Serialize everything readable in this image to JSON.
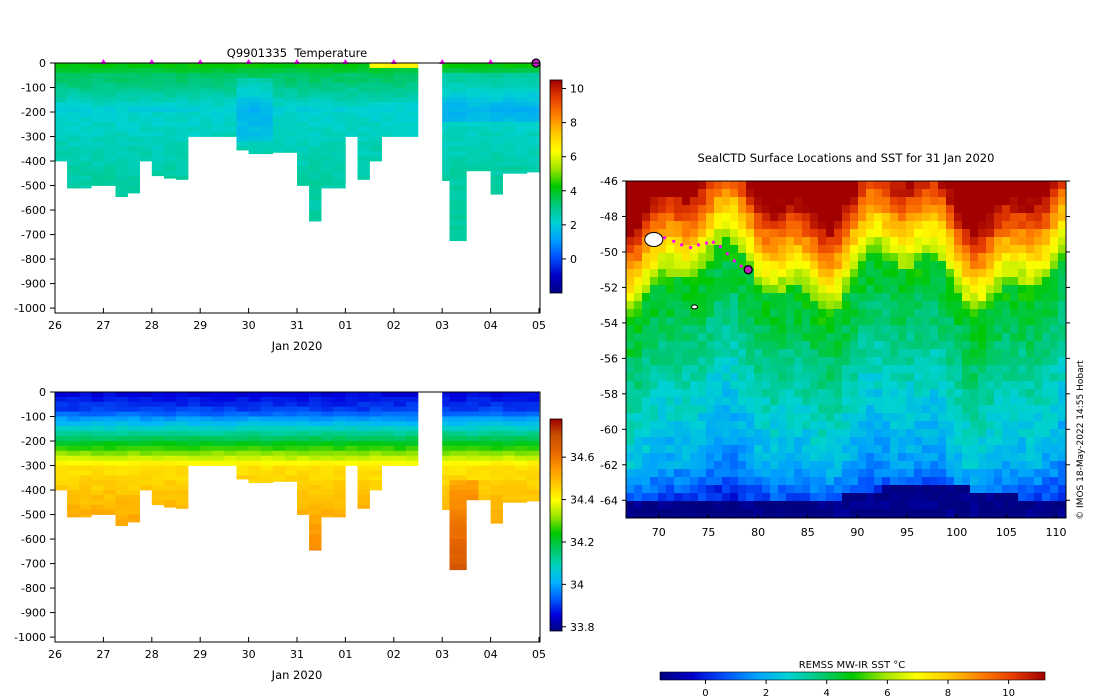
{
  "figure": {
    "copyright": "© IMOS 18-May-2022 14:55 Hobart"
  },
  "colors": {
    "temperature_scale": [
      "#000080",
      "#0000c8",
      "#0050ff",
      "#00a0ff",
      "#00d2d2",
      "#00c878",
      "#00c800",
      "#a0e600",
      "#ffff00",
      "#ffc800",
      "#ff8000",
      "#e63c00",
      "#a00000"
    ],
    "salinity_scale": [
      "#000080",
      "#0000dc",
      "#0060ff",
      "#00b4ff",
      "#00d2be",
      "#00c864",
      "#00c800",
      "#96e600",
      "#ffff00",
      "#ffc800",
      "#ff9600",
      "#e66400",
      "#c85000",
      "#a00000"
    ],
    "track_dot": "#ff00ff",
    "marker_fill": "#c020c0"
  },
  "chart_data": [
    {
      "type": "heatmap",
      "title": "Q9901335  Temperature",
      "xlabel": "Jan 2020",
      "ylabel": "",
      "xticks": [
        "26",
        "27",
        "28",
        "29",
        "30",
        "31",
        "01",
        "02",
        "03",
        "04",
        "05"
      ],
      "yticks": [
        "0",
        "-100",
        "-200",
        "-300",
        "-400",
        "-500",
        "-600",
        "-700",
        "-800",
        "-900",
        "-1000"
      ],
      "ylim": [
        -1020,
        0
      ],
      "colorbar": {
        "min": -2,
        "max": 10.5,
        "ticks": [
          "0",
          "2",
          "4",
          "6",
          "8",
          "10"
        ],
        "tick_values": [
          0,
          2,
          4,
          6,
          8,
          10
        ]
      },
      "surface_markers_day": [
        27,
        28,
        29,
        30,
        31,
        32,
        33,
        34,
        35
      ],
      "profiles": [
        {
          "day": 26.0,
          "w": 0.25,
          "depth": 400
        },
        {
          "day": 26.25,
          "w": 0.25,
          "depth": 510
        },
        {
          "day": 26.5,
          "w": 0.25,
          "depth": 510
        },
        {
          "day": 26.75,
          "w": 0.25,
          "depth": 500
        },
        {
          "day": 27.0,
          "w": 0.25,
          "depth": 500
        },
        {
          "day": 27.25,
          "w": 0.25,
          "depth": 545
        },
        {
          "day": 27.5,
          "w": 0.25,
          "depth": 530
        },
        {
          "day": 27.75,
          "w": 0.25,
          "depth": 400
        },
        {
          "day": 28.0,
          "w": 0.25,
          "depth": 460
        },
        {
          "day": 28.25,
          "w": 0.25,
          "depth": 470
        },
        {
          "day": 28.5,
          "w": 0.25,
          "depth": 475
        },
        {
          "day": 28.75,
          "w": 0.25,
          "depth": 300
        },
        {
          "day": 29.0,
          "w": 0.25,
          "depth": 300
        },
        {
          "day": 29.25,
          "w": 0.25,
          "depth": 300
        },
        {
          "day": 29.5,
          "w": 0.25,
          "depth": 300
        },
        {
          "day": 29.75,
          "w": 0.25,
          "depth": 355
        },
        {
          "day": 30.0,
          "w": 0.25,
          "depth": 370
        },
        {
          "day": 30.25,
          "w": 0.25,
          "depth": 370
        },
        {
          "day": 30.5,
          "w": 0.25,
          "depth": 365
        },
        {
          "day": 30.75,
          "w": 0.25,
          "depth": 365
        },
        {
          "day": 31.0,
          "w": 0.25,
          "depth": 500
        },
        {
          "day": 31.25,
          "w": 0.25,
          "depth": 645
        },
        {
          "day": 31.5,
          "w": 0.25,
          "depth": 510
        },
        {
          "day": 31.75,
          "w": 0.25,
          "depth": 510
        },
        {
          "day": 32.0,
          "w": 0.25,
          "depth": 300
        },
        {
          "day": 32.25,
          "w": 0.25,
          "depth": 475
        },
        {
          "day": 32.5,
          "w": 0.25,
          "depth": 400
        },
        {
          "day": 32.75,
          "w": 0.25,
          "depth": 300
        },
        {
          "day": 33.0,
          "w": 0.25,
          "depth": 300
        },
        {
          "day": 33.25,
          "w": 0.25,
          "depth": 300
        },
        {
          "day": 34.0,
          "w": 0.15,
          "depth": 480
        },
        {
          "day": 34.15,
          "w": 0.35,
          "depth": 725
        },
        {
          "day": 34.5,
          "w": 0.25,
          "depth": 440
        },
        {
          "day": 34.75,
          "w": 0.25,
          "depth": 440
        },
        {
          "day": 35.0,
          "w": 0.25,
          "depth": 535
        },
        {
          "day": 35.25,
          "w": 0.25,
          "depth": 450
        },
        {
          "day": 35.5,
          "w": 0.25,
          "depth": 450
        },
        {
          "day": 35.75,
          "w": 0.25,
          "depth": 445
        }
      ]
    },
    {
      "type": "heatmap",
      "title": "",
      "xlabel": "Jan 2020",
      "ylabel": "",
      "xticks": [
        "26",
        "27",
        "28",
        "29",
        "30",
        "31",
        "01",
        "02",
        "03",
        "04",
        "05"
      ],
      "yticks": [
        "0",
        "-100",
        "-200",
        "-300",
        "-400",
        "-500",
        "-600",
        "-700",
        "-800",
        "-900",
        "-1000"
      ],
      "ylim": [
        -1020,
        0
      ],
      "colorbar": {
        "min": 33.78,
        "max": 34.78,
        "ticks": [
          "33.8",
          "34",
          "34.2",
          "34.4",
          "34.6"
        ],
        "tick_values": [
          33.8,
          34.0,
          34.2,
          34.4,
          34.6
        ]
      }
    },
    {
      "type": "heatmap",
      "title": "SealCTD Surface Locations and SST for 31 Jan 2020",
      "xlabel": "",
      "ylabel": "",
      "xlim": [
        66.7,
        111
      ],
      "ylim": [
        -65,
        -46
      ],
      "xticks": [
        "70",
        "75",
        "80",
        "85",
        "90",
        "95",
        "100",
        "105",
        "110"
      ],
      "xtick_values": [
        70,
        75,
        80,
        85,
        90,
        95,
        100,
        105,
        110
      ],
      "yticks": [
        "-46",
        "-48",
        "-50",
        "-52",
        "-54",
        "-56",
        "-58",
        "-60",
        "-62",
        "-64"
      ],
      "ytick_values": [
        -46,
        -48,
        -50,
        -52,
        -54,
        -56,
        -58,
        -60,
        -62,
        -64
      ],
      "colorbar": {
        "label": "REMSS MW-IR SST °C",
        "min": -1.5,
        "max": 11.2,
        "ticks": [
          "0",
          "2",
          "4",
          "6",
          "8",
          "10"
        ],
        "tick_values": [
          0,
          2,
          4,
          6,
          8,
          10
        ]
      },
      "track": [
        [
          70.6,
          -49.2
        ],
        [
          71.5,
          -49.4
        ],
        [
          72.3,
          -49.6
        ],
        [
          73.2,
          -49.75
        ],
        [
          74.0,
          -49.6
        ],
        [
          74.8,
          -49.5
        ],
        [
          75.5,
          -49.45
        ],
        [
          76.2,
          -49.7
        ],
        [
          76.9,
          -50.1
        ],
        [
          77.6,
          -50.5
        ],
        [
          78.3,
          -50.8
        ]
      ],
      "last_position": [
        79.0,
        -51.0
      ],
      "land": [
        [
          69.5,
          -49.3
        ],
        [
          73.6,
          -53.1
        ]
      ]
    }
  ]
}
